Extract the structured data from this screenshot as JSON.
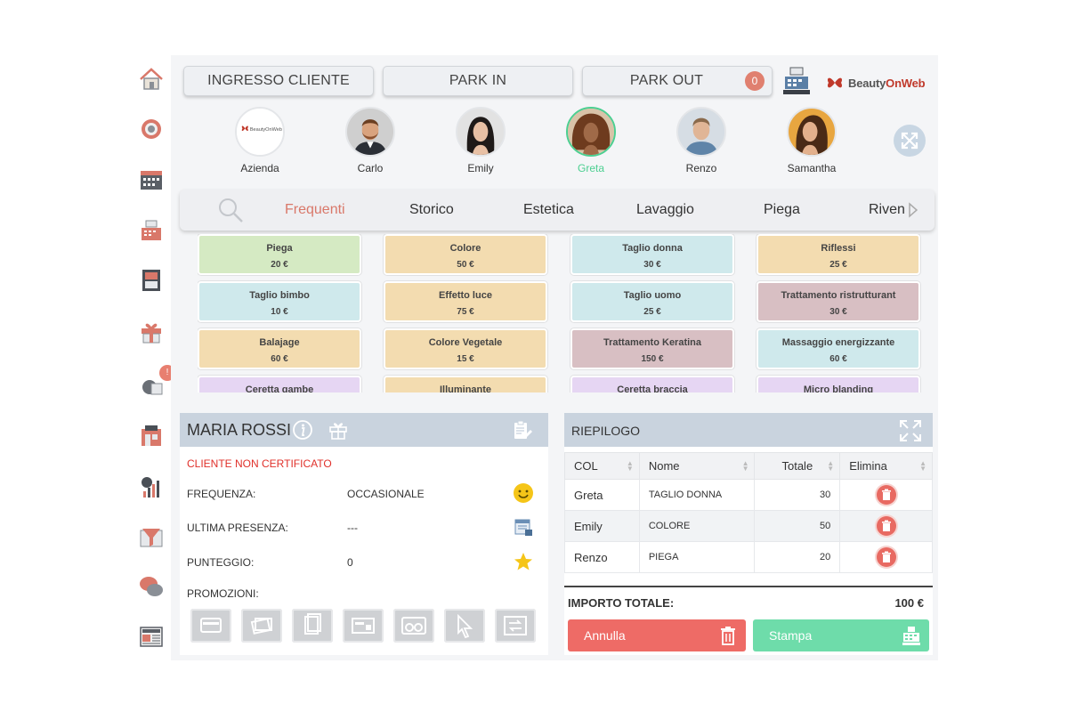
{
  "topbar": {
    "ingresso_label": "INGRESSO CLIENTE",
    "park_in_label": "PARK IN",
    "park_out_label": "PARK OUT",
    "park_out_count": "0",
    "brand_prefix": "Beauty",
    "brand_suffix": "OnWeb"
  },
  "sidebar": {
    "icons": [
      "home-icon",
      "settings-icon",
      "calendar-icon",
      "cash-register-icon",
      "cabinet-icon",
      "gift-icon",
      "notification-icon",
      "warehouse-icon",
      "statistics-icon",
      "funnel-icon",
      "chat-icon",
      "news-icon"
    ],
    "notification_badge": "!"
  },
  "operators": [
    {
      "name": "Azienda",
      "logo_text": "BeautyOnWeb"
    },
    {
      "name": "Carlo"
    },
    {
      "name": "Emily"
    },
    {
      "name": "Greta",
      "active": true
    },
    {
      "name": "Renzo"
    },
    {
      "name": "Samantha"
    }
  ],
  "categories": [
    "Frequenti",
    "Storico",
    "Estetica",
    "Lavaggio",
    "Piega",
    "Riven"
  ],
  "active_category": "Frequenti",
  "services": [
    {
      "name": "Piega",
      "price": "20 €",
      "color": "#d5eac3"
    },
    {
      "name": "Colore",
      "price": "50 €",
      "color": "#f3dcb0"
    },
    {
      "name": "Taglio donna",
      "price": "30 €",
      "color": "#cfe9ec"
    },
    {
      "name": "Riflessi",
      "price": "25 €",
      "color": "#f3dcb0"
    },
    {
      "name": "Taglio bimbo",
      "price": "10 €",
      "color": "#cfe9ec"
    },
    {
      "name": "Effetto luce",
      "price": "75 €",
      "color": "#f3dcb0"
    },
    {
      "name": "Taglio uomo",
      "price": "25 €",
      "color": "#cfe9ec"
    },
    {
      "name": "Trattamento ristrutturant",
      "price": "30 €",
      "color": "#d8bfc3"
    },
    {
      "name": "Balajage",
      "price": "60 €",
      "color": "#f3dcb0"
    },
    {
      "name": "Colore Vegetale",
      "price": "15 €",
      "color": "#f3dcb0"
    },
    {
      "name": "Trattamento Keratina",
      "price": "150 €",
      "color": "#d8bfc3"
    },
    {
      "name": "Massaggio energizzante",
      "price": "60 €",
      "color": "#cfe9ec"
    },
    {
      "name": "Ceretta gambe",
      "price": "",
      "color": "#e6d6f3"
    },
    {
      "name": "Illuminante",
      "price": "",
      "color": "#f3dcb0"
    },
    {
      "name": "Ceretta braccia",
      "price": "",
      "color": "#e6d6f3"
    },
    {
      "name": "Micro blanding",
      "price": "",
      "color": "#e6d6f3"
    }
  ],
  "client": {
    "name": "MARIA ROSSI",
    "certification": "CLIENTE NON CERTIFICATO",
    "frequenza_label": "FREQUENZA:",
    "frequenza_value": "OCCASIONALE",
    "ultima_label": "ULTIMA PRESENZA:",
    "ultima_value": "---",
    "punteggio_label": "PUNTEGGIO:",
    "punteggio_value": "0",
    "promozioni_label": "PROMOZIONI:"
  },
  "summary": {
    "title": "RIEPILOGO",
    "columns": [
      "COL",
      "Nome",
      "Totale",
      "Elimina"
    ],
    "rows": [
      {
        "col": "Greta",
        "nome": "TAGLIO DONNA",
        "totale": "30"
      },
      {
        "col": "Emily",
        "nome": "COLORE",
        "totale": "50"
      },
      {
        "col": "Renzo",
        "nome": "PIEGA",
        "totale": "20"
      }
    ],
    "total_label": "IMPORTO TOTALE:",
    "total_value": "100 €",
    "annulla_label": "Annulla",
    "stampa_label": "Stampa"
  },
  "colors": {
    "accent_green": "#4ccf91",
    "category_active": "#d9786a",
    "annulla": "#ee6b66",
    "stampa": "#6edcaa",
    "warning_text": "#e0302a"
  }
}
